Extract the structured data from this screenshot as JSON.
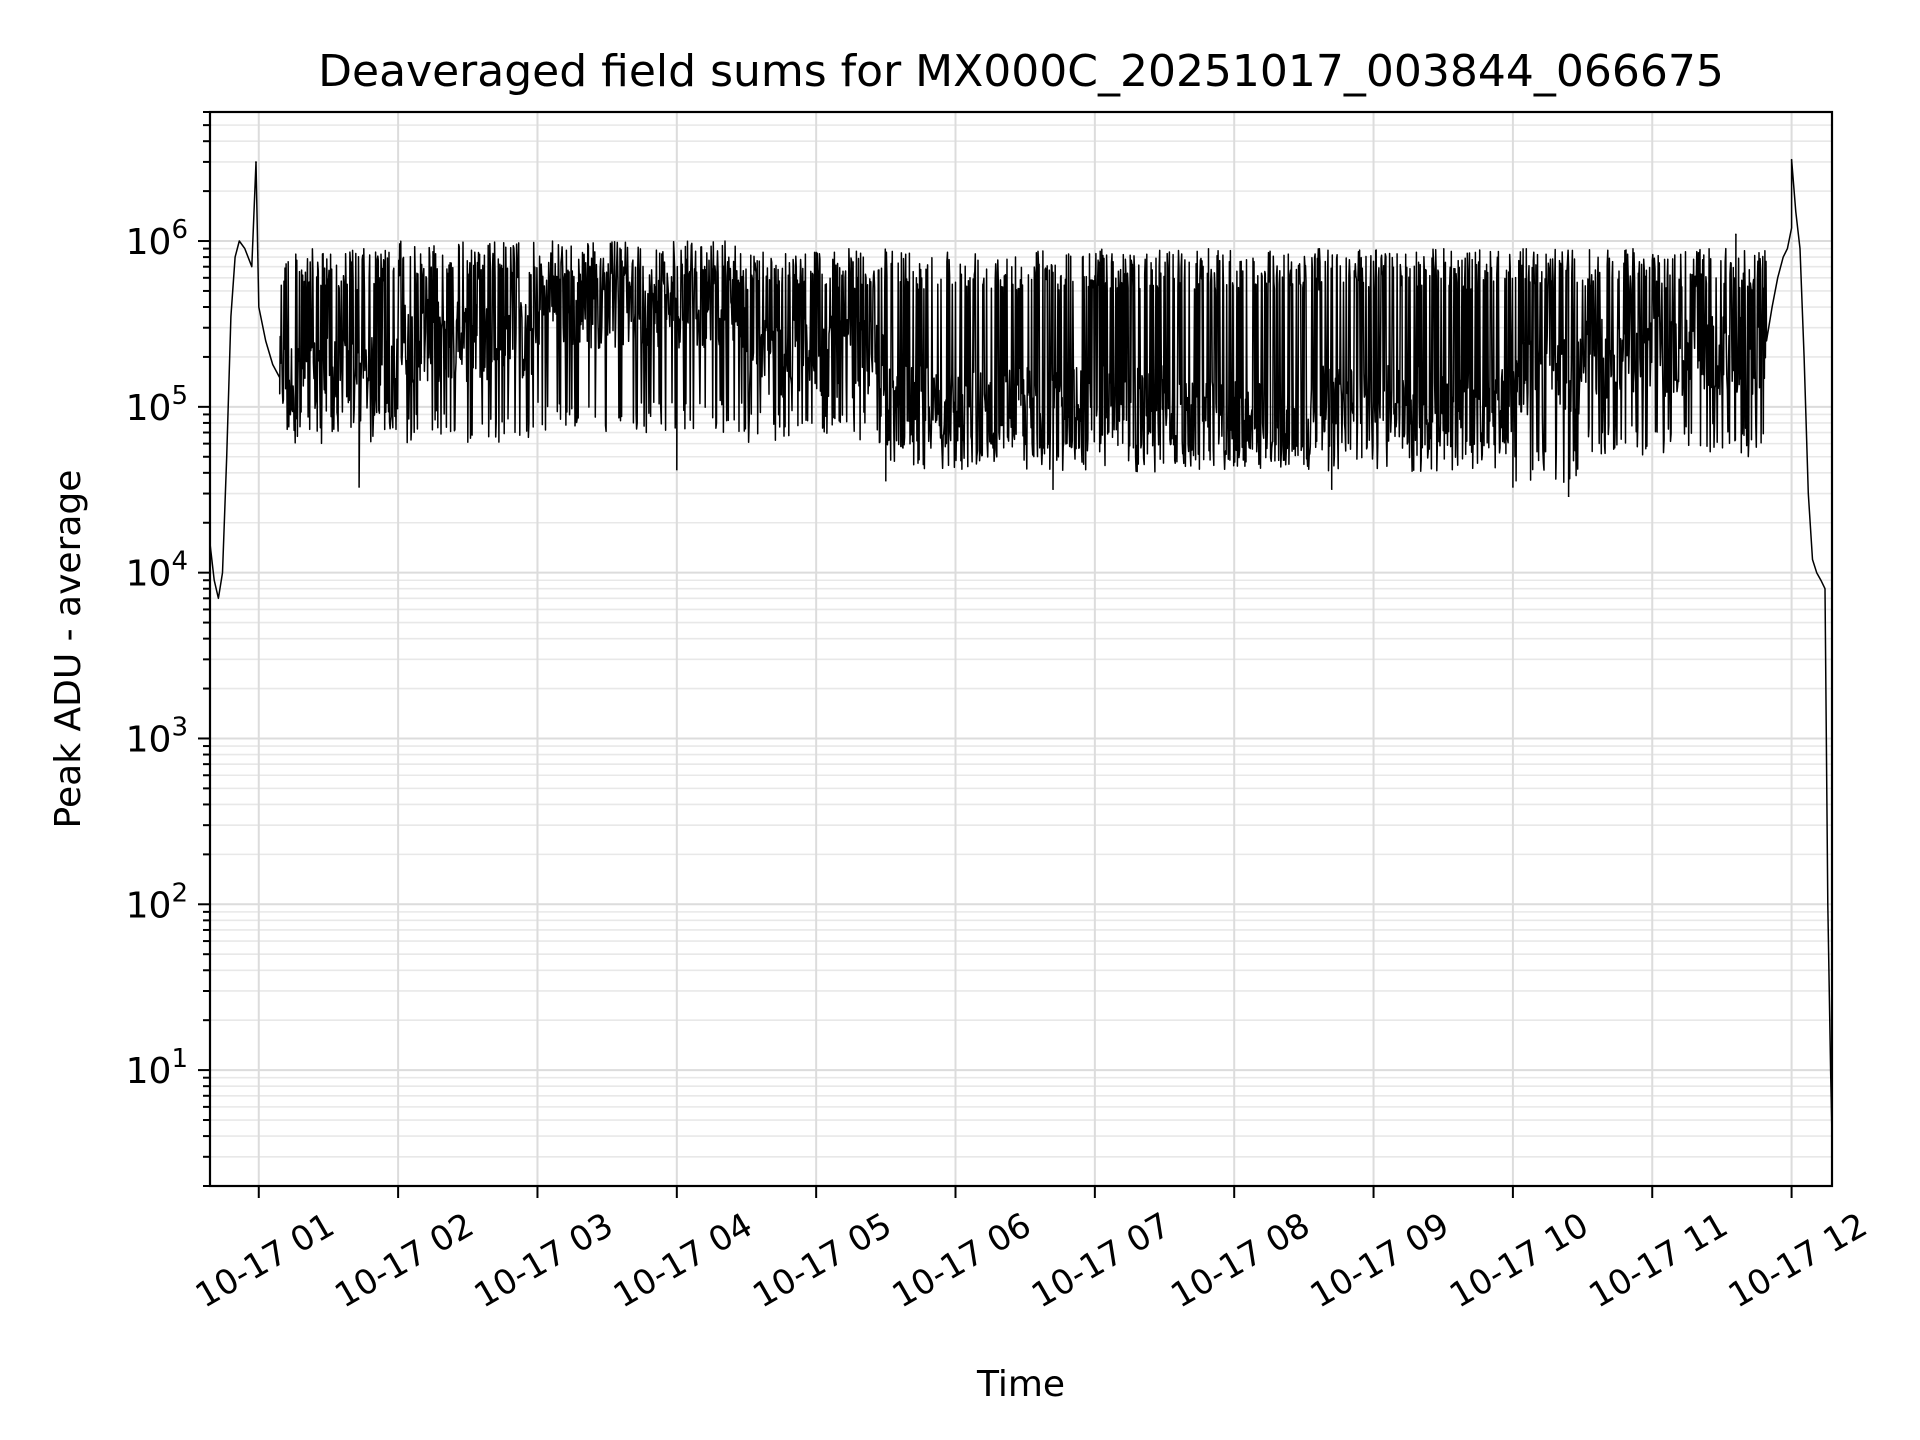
{
  "chart_data": {
    "type": "line",
    "title": "Deaveraged field sums for MX000C_20251017_003844_066675",
    "xlabel": "Time",
    "ylabel": "Peak ADU - average",
    "yscale": "log",
    "ylim": [
      2,
      6000000
    ],
    "xlim_hours": [
      0.65,
      12.29
    ],
    "grid": true,
    "line_color": "#000000",
    "y_ticks": [
      {
        "value": 10,
        "base": "10",
        "exp": "1"
      },
      {
        "value": 100,
        "base": "10",
        "exp": "2"
      },
      {
        "value": 1000,
        "base": "10",
        "exp": "3"
      },
      {
        "value": 10000,
        "base": "10",
        "exp": "4"
      },
      {
        "value": 100000,
        "base": "10",
        "exp": "5"
      },
      {
        "value": 1000000,
        "base": "10",
        "exp": "6"
      }
    ],
    "x_ticks": [
      {
        "hour": 1,
        "label": "10-17 01"
      },
      {
        "hour": 2,
        "label": "10-17 02"
      },
      {
        "hour": 3,
        "label": "10-17 03"
      },
      {
        "hour": 4,
        "label": "10-17 04"
      },
      {
        "hour": 5,
        "label": "10-17 05"
      },
      {
        "hour": 6,
        "label": "10-17 06"
      },
      {
        "hour": 7,
        "label": "10-17 07"
      },
      {
        "hour": 8,
        "label": "10-17 08"
      },
      {
        "hour": 9,
        "label": "10-17 09"
      },
      {
        "hour": 10,
        "label": "10-17 10"
      },
      {
        "hour": 11,
        "label": "10-17 11"
      },
      {
        "hour": 12,
        "label": "10-17 12"
      }
    ],
    "series": [
      {
        "name": "Peak ADU - average",
        "segments": [
          {
            "x": [
              0.65,
              0.68,
              0.71,
              0.74,
              0.77,
              0.8,
              0.83,
              0.86,
              0.9,
              0.95,
              1.0,
              1.05,
              1.1,
              1.15
            ],
            "y": [
              15000,
              9000,
              7000,
              10000,
              50000,
              350000,
              800000,
              1000000,
              900000,
              700000,
              400000,
              250000,
              180000,
              150000
            ]
          },
          {
            "x": [
              11.82,
              11.86,
              11.9,
              11.94,
              11.97,
              12.0,
              12.03,
              12.06,
              12.09,
              12.12,
              12.15,
              12.18,
              12.21,
              12.24,
              12.26,
              12.28,
              12.29
            ],
            "y": [
              250000,
              400000,
              600000,
              800000,
              900000,
              1200000,
              1500000,
              900000,
              200000,
              30000,
              12000,
              10000,
              9000,
              8000,
              100,
              10,
              4
            ]
          }
        ],
        "noise_bands": [
          {
            "x_start": 1.15,
            "x_end": 2.0,
            "low": 60000,
            "mid": 150000,
            "high": 900000
          },
          {
            "x_start": 2.0,
            "x_end": 3.0,
            "low": 60000,
            "mid": 250000,
            "high": 1000000
          },
          {
            "x_start": 3.0,
            "x_end": 4.5,
            "low": 70000,
            "mid": 400000,
            "high": 1000000
          },
          {
            "x_start": 4.5,
            "x_end": 5.5,
            "low": 60000,
            "mid": 200000,
            "high": 900000
          },
          {
            "x_start": 5.5,
            "x_end": 7.5,
            "low": 40000,
            "mid": 100000,
            "high": 900000
          },
          {
            "x_start": 7.5,
            "x_end": 8.6,
            "low": 40000,
            "mid": 80000,
            "high": 900000
          },
          {
            "x_start": 8.6,
            "x_end": 10.0,
            "low": 40000,
            "mid": 100000,
            "high": 900000
          },
          {
            "x_start": 10.0,
            "x_end": 10.5,
            "low": 35000,
            "mid": 150000,
            "high": 900000
          },
          {
            "x_start": 10.5,
            "x_end": 11.82,
            "low": 50000,
            "mid": 200000,
            "high": 900000
          }
        ],
        "spikes": [
          {
            "x": 0.98,
            "y": 3000000
          },
          {
            "x": 12.0,
            "y": 3100000
          },
          {
            "x": 1.72,
            "y": 33000
          },
          {
            "x": 4.0,
            "y": 42000
          },
          {
            "x": 5.5,
            "y": 36000
          },
          {
            "x": 6.7,
            "y": 32000
          },
          {
            "x": 8.7,
            "y": 32000
          },
          {
            "x": 10.0,
            "y": 33000
          },
          {
            "x": 10.4,
            "y": 29000
          },
          {
            "x": 11.6,
            "y": 1100000
          }
        ]
      }
    ]
  }
}
